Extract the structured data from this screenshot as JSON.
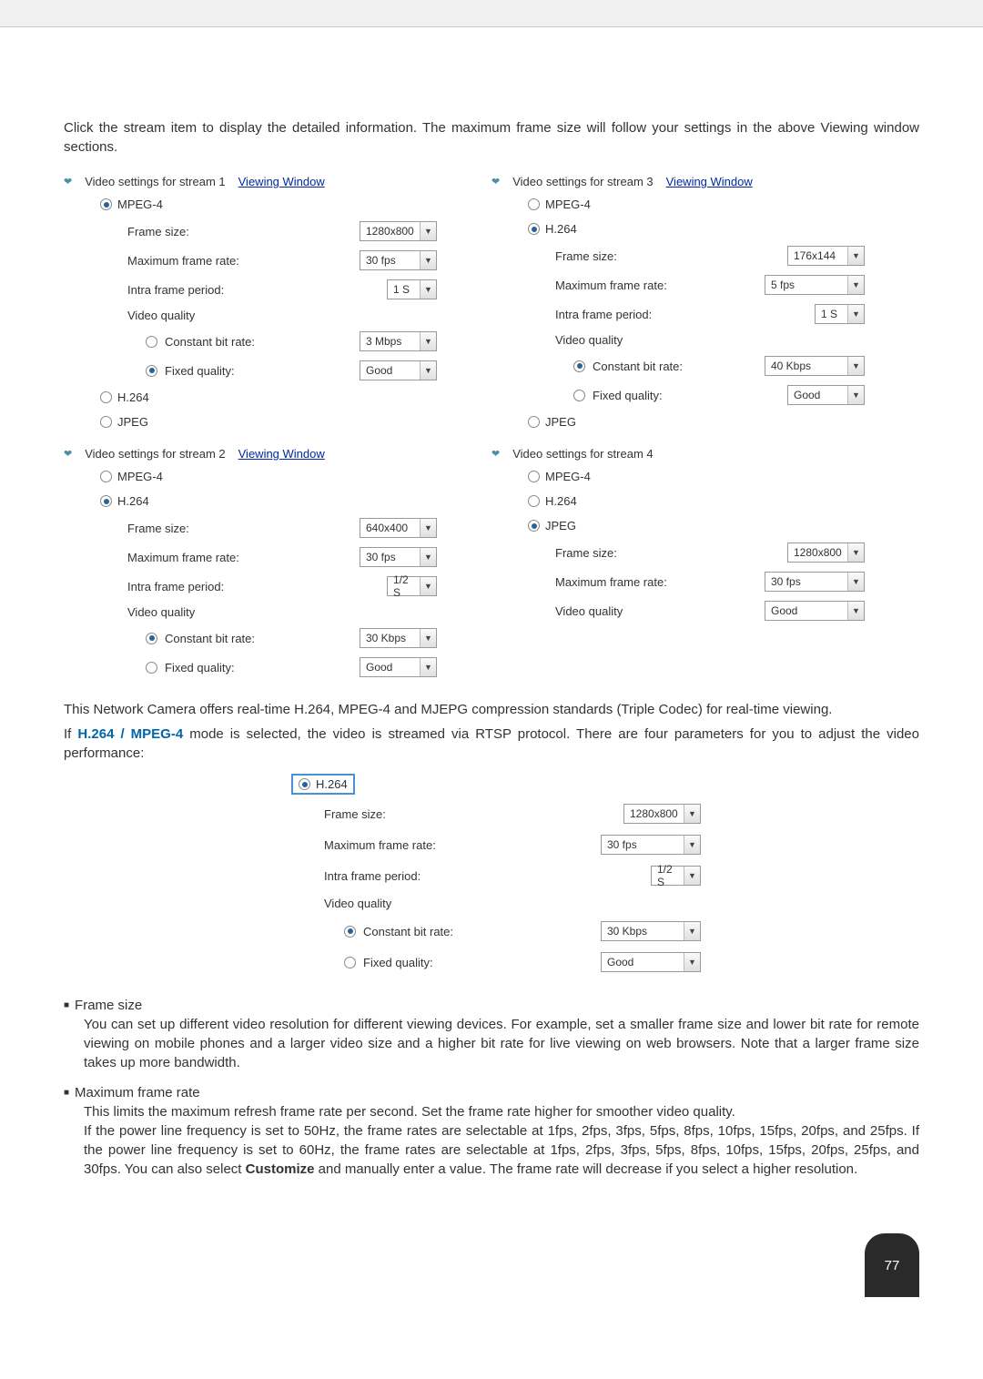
{
  "intro1": "Click the stream item to display the detailed information. The maximum frame size will follow your settings in the above Viewing window sections.",
  "viewingWindow": "Viewing Window",
  "streams": {
    "s1": {
      "title": "Video settings for stream 1",
      "mpeg4": "MPEG-4",
      "h264": "H.264",
      "jpeg": "JPEG",
      "frameSize": "Frame size:",
      "frameSizeVal": "1280x800",
      "maxRate": "Maximum frame rate:",
      "maxRateVal": "30 fps",
      "intra": "Intra frame period:",
      "intraVal": "1 S",
      "vq": "Video quality",
      "cbr": "Constant bit rate:",
      "cbrVal": "3 Mbps",
      "fq": "Fixed quality:",
      "fqVal": "Good"
    },
    "s2": {
      "title": "Video settings for stream 2",
      "mpeg4": "MPEG-4",
      "h264": "H.264",
      "jpeg": "JPEG",
      "frameSize": "Frame size:",
      "frameSizeVal": "640x400",
      "maxRate": "Maximum frame rate:",
      "maxRateVal": "30 fps",
      "intra": "Intra frame period:",
      "intraVal": "1/2 S",
      "vq": "Video quality",
      "cbr": "Constant bit rate:",
      "cbrVal": "30 Kbps",
      "fq": "Fixed quality:",
      "fqVal": "Good"
    },
    "s3": {
      "title": "Video settings for stream 3",
      "mpeg4": "MPEG-4",
      "h264": "H.264",
      "jpeg": "JPEG",
      "frameSize": "Frame size:",
      "frameSizeVal": "176x144",
      "maxRate": "Maximum frame rate:",
      "maxRateVal": "5 fps",
      "intra": "Intra frame period:",
      "intraVal": "1 S",
      "vq": "Video quality",
      "cbr": "Constant bit rate:",
      "cbrVal": "40 Kbps",
      "fq": "Fixed quality:",
      "fqVal": "Good"
    },
    "s4": {
      "title": "Video settings for stream 4",
      "mpeg4": "MPEG-4",
      "h264": "H.264",
      "jpeg": "JPEG",
      "frameSize": "Frame size:",
      "frameSizeVal": "1280x800",
      "maxRate": "Maximum frame rate:",
      "maxRateVal": "30 fps",
      "vq": "Video quality",
      "vqVal": "Good"
    }
  },
  "para2a": "This Network Camera offers real-time H.264, MPEG-4 and MJEPG compression standards (Triple Codec) for real-time viewing.",
  "para2b_pre": "If ",
  "para2b_link": "H.264 / MPEG-4",
  "para2b_post": " mode is selected, the video is streamed via RTSP protocol. There are four parameters for you to adjust the video performance:",
  "example": {
    "h264": "H.264",
    "frameSize": "Frame size:",
    "frameSizeVal": "1280x800",
    "maxRate": "Maximum frame rate:",
    "maxRateVal": "30 fps",
    "intra": "Intra frame period:",
    "intraVal": "1/2 S",
    "vq": "Video quality",
    "cbr": "Constant bit rate:",
    "cbrVal": "30 Kbps",
    "fq": "Fixed quality:",
    "fqVal": "Good"
  },
  "bullet1": {
    "head": "Frame size",
    "body": "You can set up different video resolution for different viewing devices. For example, set a smaller frame size and lower bit rate for remote viewing on mobile phones and a larger video size and a higher bit rate for live viewing on web browsers. Note that a larger frame size takes up more bandwidth."
  },
  "bullet2": {
    "head": "Maximum frame rate",
    "body1": "This limits the maximum refresh frame rate per second. Set the frame rate higher for smoother video quality.",
    "body2_pre": "If the power line frequency is set to 50Hz, the frame rates are selectable at 1fps, 2fps, 3fps, 5fps, 8fps, 10fps, 15fps, 20fps, and 25fps. If the power line frequency is set to 60Hz, the frame rates are selectable at 1fps, 2fps, 3fps, 5fps, 8fps, 10fps, 15fps, 20fps, 25fps, and 30fps. You can also select ",
    "body2_bold": "Customize",
    "body2_post": " and manually enter a value. The frame rate will decrease if you select a higher resolution."
  },
  "pageNum": "77"
}
